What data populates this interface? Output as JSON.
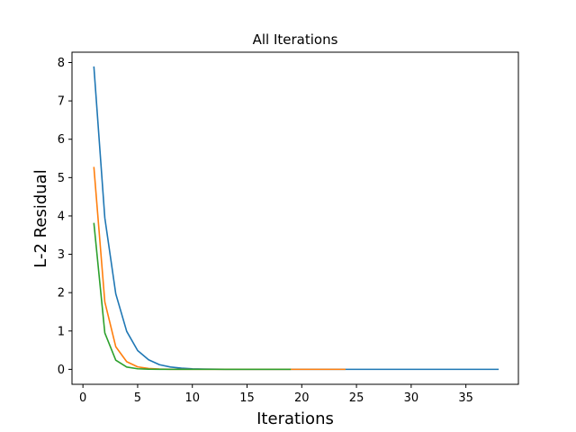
{
  "chart_data": {
    "type": "line",
    "title": "All Iterations",
    "xlabel": "Iterations",
    "ylabel": "L-2 Residual",
    "xlim": [
      -1,
      39.8
    ],
    "ylim": [
      -0.39,
      8.27
    ],
    "xticks": [
      0,
      5,
      10,
      15,
      20,
      25,
      30,
      35
    ],
    "yticks": [
      0,
      1,
      2,
      3,
      4,
      5,
      6,
      7,
      8
    ],
    "grid": false,
    "legend": "none",
    "series": [
      {
        "color": "#1f77b4",
        "x": [
          1,
          2,
          3,
          4,
          5,
          6,
          7,
          8,
          9,
          10,
          11,
          12,
          13,
          14,
          15,
          16,
          17,
          18,
          19,
          20,
          21,
          22,
          23,
          24,
          25,
          26,
          27,
          28,
          29,
          30,
          31,
          32,
          33,
          34,
          35,
          36,
          37,
          38
        ],
        "y": [
          7.9,
          3.95,
          1.97,
          0.99,
          0.49,
          0.25,
          0.12,
          0.06,
          0.03,
          0.015,
          0.008,
          0.004,
          0.002,
          0.001,
          0,
          0,
          0,
          0,
          0,
          0,
          0,
          0,
          0,
          0,
          0,
          0,
          0,
          0,
          0,
          0,
          0,
          0,
          0,
          0,
          0,
          0,
          0,
          0
        ]
      },
      {
        "color": "#ff7f0e",
        "x": [
          1,
          2,
          3,
          4,
          5,
          6,
          7,
          8,
          9,
          10,
          11,
          12,
          13,
          14,
          15,
          16,
          17,
          18,
          19,
          20,
          21,
          22,
          23,
          24
        ],
        "y": [
          5.28,
          1.76,
          0.59,
          0.2,
          0.065,
          0.022,
          0.007,
          0.002,
          0.001,
          0,
          0,
          0,
          0,
          0,
          0,
          0,
          0,
          0,
          0,
          0,
          0,
          0,
          0,
          0
        ]
      },
      {
        "color": "#2ca02c",
        "x": [
          1,
          2,
          3,
          4,
          5,
          6,
          7,
          8,
          9,
          10,
          11,
          12,
          13,
          14,
          15,
          16,
          17,
          18,
          19
        ],
        "y": [
          3.82,
          0.95,
          0.24,
          0.06,
          0.015,
          0.004,
          0.001,
          0,
          0,
          0,
          0,
          0,
          0,
          0,
          0,
          0,
          0,
          0,
          0
        ]
      }
    ]
  }
}
